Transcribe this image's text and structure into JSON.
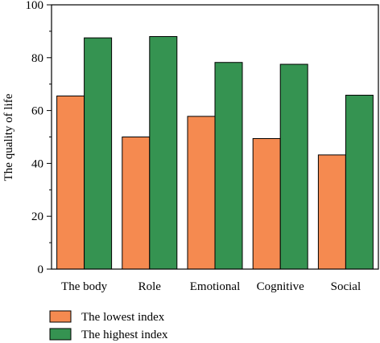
{
  "chart_data": {
    "type": "bar",
    "ylabel": "The quality of life",
    "xlabel": "",
    "ylim": [
      0,
      100
    ],
    "yticks": [
      0,
      20,
      40,
      60,
      80,
      100
    ],
    "categories": [
      "The body",
      "Role",
      "Emotional",
      "Cognitive",
      "Social"
    ],
    "series": [
      {
        "name": "The lowest index",
        "color": "#f58a50",
        "values": [
          65.5,
          50.0,
          57.8,
          49.4,
          43.2
        ]
      },
      {
        "name": "The highest index",
        "color": "#359351",
        "values": [
          87.5,
          88.0,
          78.2,
          77.5,
          65.8
        ]
      }
    ],
    "legend_position": "bottom-left",
    "grid": false
  }
}
